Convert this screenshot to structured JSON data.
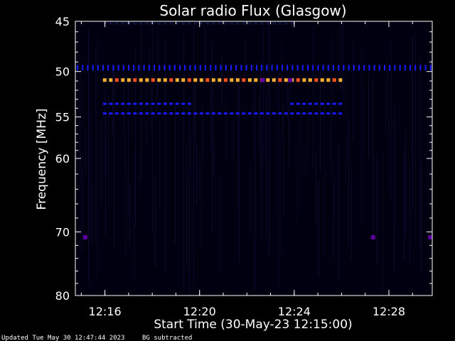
{
  "footer": {
    "updated": "Updated Tue May 30 12:47:44 2023",
    "mode": "BG subtracted"
  },
  "chart_data": {
    "type": "heatmap",
    "title": "Solar radio Flux (Glasgow)",
    "xlabel": "Start Time (30-May-23 12:15:00)",
    "ylabel": "Frequency [MHz]",
    "x_unit": "time",
    "x_range": [
      "12:14:45",
      "12:29:50"
    ],
    "x_ticks": [
      {
        "value": "12:16",
        "label": "12:16"
      },
      {
        "value": "12:20",
        "label": "12:20"
      },
      {
        "value": "12:24",
        "label": "12:24"
      },
      {
        "value": "12:28",
        "label": "12:28"
      }
    ],
    "y_scale": "log",
    "y_range": [
      45,
      80
    ],
    "y_inverted": true,
    "y_ticks": [
      45,
      50,
      55,
      60,
      70,
      80
    ],
    "y_tick_labels": [
      "45",
      "50",
      "55",
      "60",
      "70",
      "80"
    ],
    "grid": false,
    "colors": {
      "background": "#000010",
      "faint": "#101040",
      "low": "#1a1aff",
      "mid": "#5a00a0",
      "high": "#ff5020",
      "peak": "#ffb030"
    },
    "bands": [
      {
        "name": "49.6 MHz",
        "freq": 49.6,
        "start": "12:14:45",
        "end": "12:29:50",
        "level": "low",
        "pattern": "ticks"
      },
      {
        "name": "50.9 MHz",
        "freq": 50.9,
        "start": "12:15:55",
        "end": "12:26:10",
        "level": "high",
        "pattern": "dashes"
      },
      {
        "name": "53.5 MHz",
        "freq": 53.5,
        "start": "12:15:55",
        "end": "12:19:50",
        "level": "low",
        "pattern": "dashes"
      },
      {
        "name": "53.5 MHz (late)",
        "freq": 53.5,
        "start": "12:23:50",
        "end": "12:26:10",
        "level": "low",
        "pattern": "dashes"
      },
      {
        "name": "54.6 MHz",
        "freq": 54.6,
        "start": "12:15:55",
        "end": "12:26:10",
        "level": "low",
        "pattern": "dashes"
      },
      {
        "name": "45.2 MHz",
        "freq": 45.2,
        "start": "12:15:55",
        "end": "12:24:00",
        "level": "faint",
        "pattern": "dashes"
      }
    ],
    "hotspots": [
      {
        "time": "12:15:10",
        "freq": 70.8,
        "level": "mid"
      },
      {
        "time": "12:29:45",
        "freq": 70.8,
        "level": "mid"
      },
      {
        "time": "12:27:20",
        "freq": 70.8,
        "level": "mid"
      },
      {
        "time": "12:22:40",
        "freq": 50.9,
        "level": "mid"
      },
      {
        "time": "12:23:50",
        "freq": 50.9,
        "level": "mid"
      }
    ]
  }
}
